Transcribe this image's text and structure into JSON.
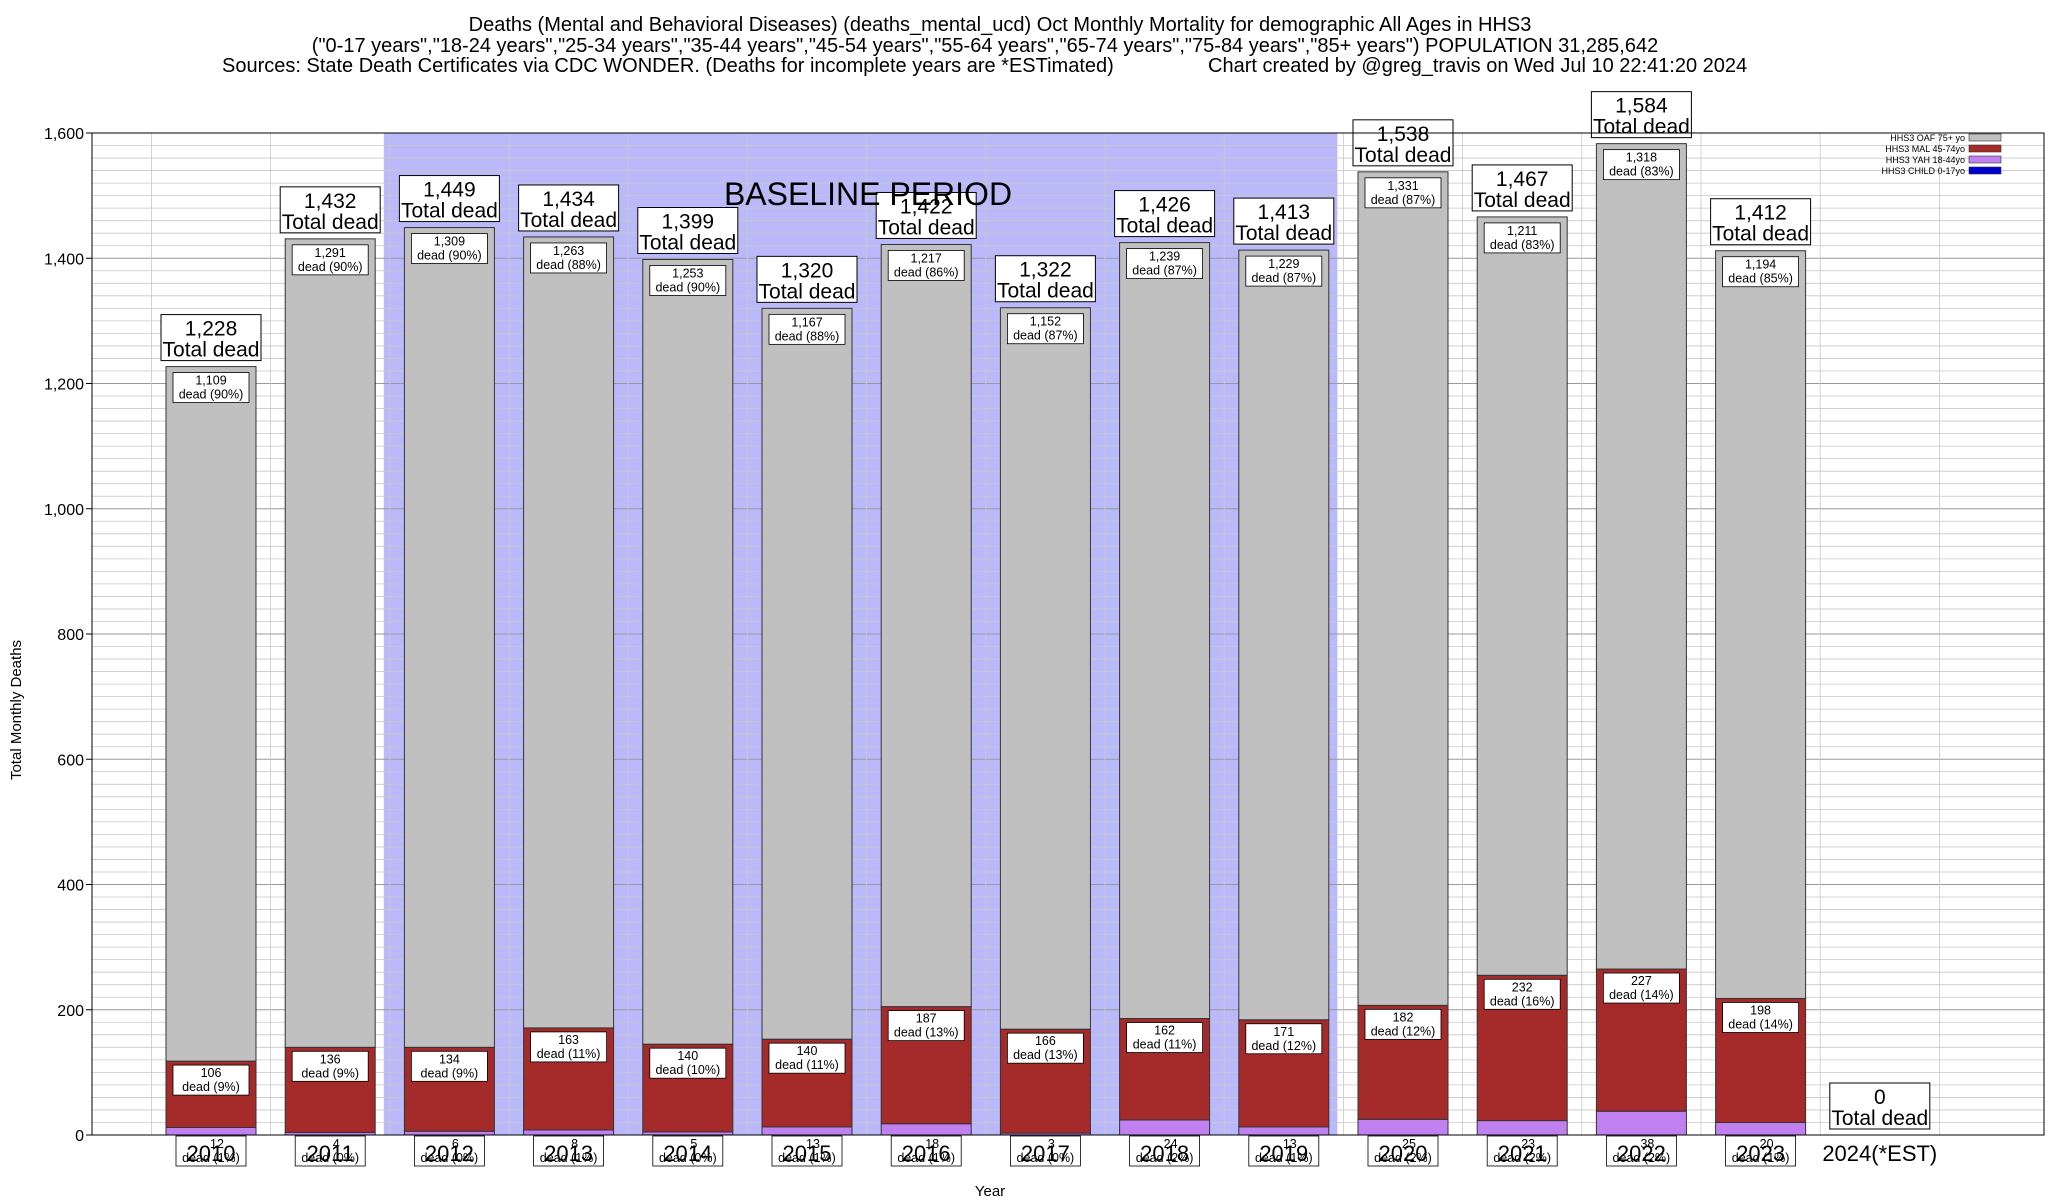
{
  "title": {
    "line1": "Deaths (Mental and Behavioral Diseases) (deaths_mental_ucd) Oct Monthly Mortality for demographic All Ages in HHS3",
    "line2": "(\"0-17 years\",\"18-24 years\",\"25-34 years\",\"35-44 years\",\"45-54 years\",\"55-64 years\",\"65-74 years\",\"75-84 years\",\"85+ years\") POPULATION 31,285,642",
    "line3_left": "Sources: State Death Certificates via CDC WONDER. (Deaths for incomplete years are *ESTimated)",
    "line3_right": "Chart created by @greg_travis on Wed Jul 10 22:41:20 2024"
  },
  "baseline_label": "BASELINE PERIOD",
  "total_suffix": "Total dead",
  "dead_word": "dead",
  "chart_data": {
    "type": "bar",
    "stacked": true,
    "xlabel": "Year",
    "ylabel": "Total Monthly Deaths",
    "ylim": [
      0,
      1600
    ],
    "yticks": [
      "0",
      "200",
      "400",
      "600",
      "800",
      "1,000",
      "1,200",
      "1,400",
      "1,600"
    ],
    "grid": true,
    "legend_position": "top-right",
    "baseline_period": [
      "2012",
      "2019"
    ],
    "categories": [
      "2010",
      "2011",
      "2012",
      "2013",
      "2014",
      "2015",
      "2016",
      "2017",
      "2018",
      "2019",
      "2020",
      "2021",
      "2022",
      "2023",
      "2024(*EST)"
    ],
    "totals": [
      "1,228",
      "1,432",
      "1,449",
      "1,434",
      "1,399",
      "1,320",
      "1,422",
      "1,322",
      "1,426",
      "1,413",
      "1,538",
      "1,467",
      "1,584",
      "1,412",
      "0"
    ],
    "series": [
      {
        "name": "HHS3 CHILD 0-17yo",
        "color": "#0000cc",
        "values": [
          0,
          0,
          0,
          0,
          0,
          0,
          0,
          0,
          0,
          0,
          0,
          0,
          0,
          0,
          0
        ],
        "labels": [
          "",
          "",
          "",
          "",
          "",
          "",
          "",
          "",
          "",
          "",
          "",
          "",
          "",
          "",
          ""
        ]
      },
      {
        "name": "HHS3 YAH 18-44yo",
        "color": "#c080f0",
        "values": [
          12,
          4,
          6,
          8,
          5,
          13,
          18,
          3,
          24,
          13,
          25,
          23,
          38,
          20,
          0
        ],
        "labels": [
          "12",
          "4",
          "6",
          "8",
          "5",
          "13",
          "18",
          "3",
          "24",
          "13",
          "25",
          "23",
          "38",
          "20",
          ""
        ],
        "pcts": [
          "(1%)",
          "(0%)",
          "(0%)",
          "(1%)",
          "(0%)",
          "(1%)",
          "(1%)",
          "(0%)",
          "(2%)",
          "(1%)",
          "(2%)",
          "(2%)",
          "(2%)",
          "(1%)",
          ""
        ]
      },
      {
        "name": "HHS3 MAL 45-74yo",
        "color": "#a52a2a",
        "values": [
          106,
          136,
          134,
          163,
          140,
          140,
          187,
          166,
          162,
          171,
          182,
          232,
          227,
          198,
          0
        ],
        "labels": [
          "106",
          "136",
          "134",
          "163",
          "140",
          "140",
          "187",
          "166",
          "162",
          "171",
          "182",
          "232",
          "227",
          "198",
          ""
        ],
        "pcts": [
          "(9%)",
          "(9%)",
          "(9%)",
          "(11%)",
          "(10%)",
          "(11%)",
          "(13%)",
          "(13%)",
          "(11%)",
          "(12%)",
          "(12%)",
          "(16%)",
          "(14%)",
          "(14%)",
          ""
        ]
      },
      {
        "name": "HHS3 OAF 75+ yo",
        "color": "#c0c0c0",
        "values": [
          1109,
          1291,
          1309,
          1263,
          1253,
          1167,
          1217,
          1152,
          1239,
          1229,
          1331,
          1211,
          1318,
          1194,
          0
        ],
        "labels": [
          "1,109",
          "1,291",
          "1,309",
          "1,263",
          "1,253",
          "1,167",
          "1,217",
          "1,152",
          "1,239",
          "1,229",
          "1,331",
          "1,211",
          "1,318",
          "1,194",
          ""
        ],
        "pcts": [
          "(90%)",
          "(90%)",
          "(90%)",
          "(88%)",
          "(90%)",
          "(88%)",
          "(86%)",
          "(87%)",
          "(87%)",
          "(87%)",
          "(87%)",
          "(83%)",
          "(83%)",
          "(85%)",
          ""
        ]
      }
    ],
    "legend": [
      "HHS3 OAF 75+ yo",
      "HHS3 MAL 45-74yo",
      "HHS3 YAH 18-44yo",
      "HHS3 CHILD 0-17yo"
    ]
  }
}
